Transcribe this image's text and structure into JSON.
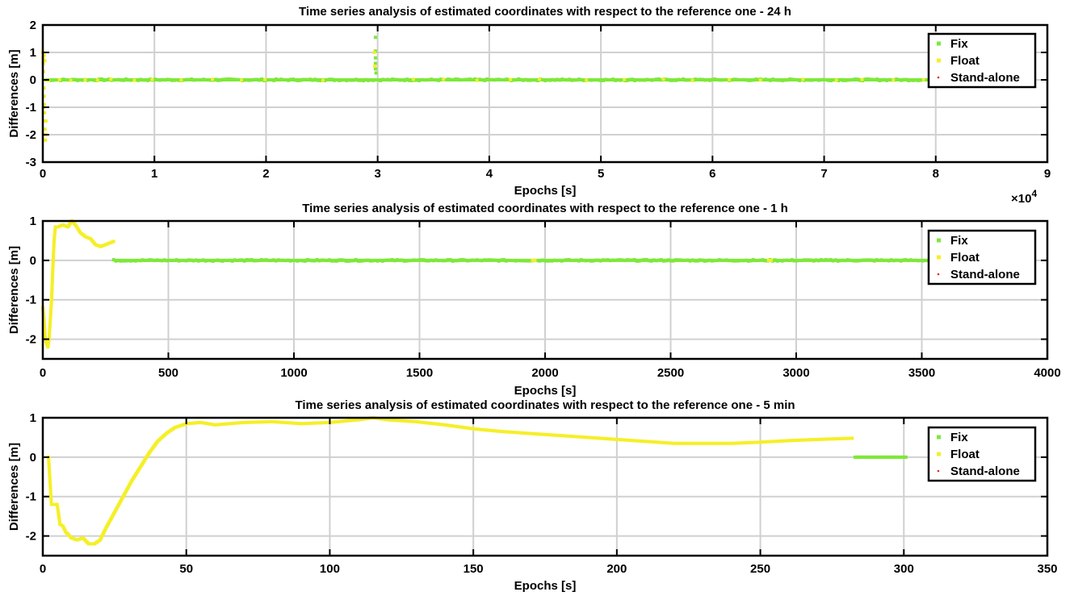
{
  "chart_data": [
    {
      "type": "scatter",
      "title": "Time series analysis of estimated coordinates with respect to the reference one - 24 h",
      "xlabel": "Epochs [s]",
      "ylabel": "Differences [m]",
      "xlim": [
        0,
        90000
      ],
      "ylim": [
        -3,
        2
      ],
      "xticks": [
        0,
        10000,
        20000,
        30000,
        40000,
        50000,
        60000,
        70000,
        80000,
        90000
      ],
      "xtick_labels": [
        "0",
        "1",
        "2",
        "3",
        "4",
        "5",
        "6",
        "7",
        "8",
        "9"
      ],
      "x_exponent_label": "×10",
      "x_exponent_power": "4",
      "yticks": [
        -3,
        -2,
        -1,
        0,
        1,
        2
      ],
      "ytick_labels": [
        "-3",
        "-2",
        "-1",
        "0",
        "1",
        "2"
      ],
      "grid": true,
      "legend_position": "top-right",
      "series": [
        {
          "name": "Fix",
          "color": "#7ee83a",
          "marker": "square",
          "segments": [
            {
              "x_start": 300,
              "x_end": 79500,
              "y": 0,
              "jitter": 0.03
            }
          ],
          "points": [
            [
              29800,
              1.55
            ],
            [
              29800,
              1.05
            ],
            [
              29800,
              0.8
            ],
            [
              29800,
              0.6
            ],
            [
              29800,
              0.4
            ],
            [
              29850,
              0.25
            ]
          ]
        },
        {
          "name": "Float",
          "color": "#f5ef28",
          "marker": "square",
          "points": [
            [
              0,
              1.0
            ],
            [
              20,
              0.8
            ],
            [
              40,
              0.6
            ],
            [
              60,
              0.3
            ],
            [
              80,
              0.0
            ],
            [
              100,
              -0.3
            ],
            [
              120,
              -0.6
            ],
            [
              140,
              -0.9
            ],
            [
              160,
              -1.2
            ],
            [
              180,
              -1.5
            ],
            [
              200,
              -1.8
            ],
            [
              220,
              -2.0
            ],
            [
              240,
              -2.2
            ],
            [
              260,
              -2.0
            ],
            [
              280,
              -1.5
            ],
            [
              120,
              0.9
            ],
            [
              180,
              0.7
            ],
            [
              60,
              -1.0
            ],
            [
              29700,
              1.0
            ],
            [
              29750,
              0.5
            ],
            [
              500,
              -0.02
            ],
            [
              1500,
              0.01
            ],
            [
              2500,
              -0.02
            ],
            [
              3800,
              0.0
            ],
            [
              4900,
              -0.01
            ],
            [
              6100,
              0.02
            ],
            [
              8200,
              -0.02
            ],
            [
              9800,
              0.01
            ],
            [
              12400,
              -0.01
            ],
            [
              15200,
              0.02
            ],
            [
              17800,
              -0.01
            ],
            [
              19900,
              0.01
            ],
            [
              25100,
              -0.02
            ],
            [
              33200,
              0.02
            ],
            [
              35900,
              0.01
            ],
            [
              38900,
              -0.02
            ],
            [
              41900,
              0.01
            ],
            [
              44500,
              0.02
            ],
            [
              48700,
              -0.01
            ],
            [
              52100,
              0.01
            ],
            [
              55600,
              0.02
            ],
            [
              58200,
              -0.02
            ],
            [
              61500,
              0.01
            ],
            [
              64300,
              -0.01
            ],
            [
              68100,
              0.02
            ],
            [
              71100,
              -0.02
            ],
            [
              73400,
              0.01
            ],
            [
              76200,
              -0.01
            ],
            [
              78900,
              0.01
            ]
          ]
        },
        {
          "name": "Stand-alone",
          "color": "#e8261f",
          "marker": "dot",
          "points": []
        }
      ]
    },
    {
      "type": "scatter",
      "title": "Time series analysis of estimated coordinates with respect to the reference one - 1 h",
      "xlabel": "Epochs [s]",
      "ylabel": "Differences [m]",
      "xlim": [
        0,
        4000
      ],
      "ylim": [
        -2.5,
        1
      ],
      "xticks": [
        0,
        500,
        1000,
        1500,
        2000,
        2500,
        3000,
        3500,
        4000
      ],
      "xtick_labels": [
        "0",
        "500",
        "1000",
        "1500",
        "2000",
        "2500",
        "3000",
        "3500",
        "4000"
      ],
      "yticks": [
        -2,
        -1,
        0,
        1
      ],
      "ytick_labels": [
        "-2",
        "-1",
        "0",
        "1"
      ],
      "grid": true,
      "legend_position": "top-right",
      "series": [
        {
          "name": "Fix",
          "color": "#7ee83a",
          "marker": "square",
          "segments": [
            {
              "x_start": 282,
              "x_end": 3560,
              "y": 0,
              "jitter": 0.02
            }
          ],
          "points": []
        },
        {
          "name": "Float",
          "color": "#f5ef28",
          "marker": "square",
          "curve": [
            [
              0,
              -1.2
            ],
            [
              5,
              -1.5
            ],
            [
              10,
              -2.0
            ],
            [
              15,
              -2.1
            ],
            [
              20,
              -2.2
            ],
            [
              25,
              -2.0
            ],
            [
              30,
              -1.5
            ],
            [
              35,
              -1.0
            ],
            [
              40,
              -0.2
            ],
            [
              45,
              0.5
            ],
            [
              50,
              0.85
            ],
            [
              60,
              0.85
            ],
            [
              80,
              0.9
            ],
            [
              100,
              0.85
            ],
            [
              115,
              1.0
            ],
            [
              130,
              0.9
            ],
            [
              150,
              0.7
            ],
            [
              170,
              0.6
            ],
            [
              190,
              0.55
            ],
            [
              210,
              0.4
            ],
            [
              230,
              0.35
            ],
            [
              250,
              0.4
            ],
            [
              270,
              0.45
            ],
            [
              282,
              0.48
            ]
          ],
          "points": [
            [
              1950,
              0.0
            ],
            [
              1960,
              0.0
            ],
            [
              2890,
              0.0
            ],
            [
              2900,
              0.0
            ]
          ]
        },
        {
          "name": "Stand-alone",
          "color": "#e8261f",
          "marker": "dot",
          "points": []
        }
      ]
    },
    {
      "type": "scatter",
      "title": "Time series analysis of estimated coordinates with respect to the reference one - 5 min",
      "xlabel": "Epochs [s]",
      "ylabel": "Differences [m]",
      "xlim": [
        0,
        350
      ],
      "ylim": [
        -2.5,
        1
      ],
      "xticks": [
        0,
        50,
        100,
        150,
        200,
        250,
        300,
        350
      ],
      "xtick_labels": [
        "0",
        "50",
        "100",
        "150",
        "200",
        "250",
        "300",
        "350"
      ],
      "yticks": [
        -2,
        -1,
        0,
        1
      ],
      "ytick_labels": [
        "-2",
        "-1",
        "0",
        "1"
      ],
      "grid": true,
      "legend_position": "top-right",
      "series": [
        {
          "name": "Fix",
          "color": "#7ee83a",
          "marker": "square",
          "segments": [
            {
              "x_start": 283,
              "x_end": 301,
              "y": 0,
              "jitter": 0.0
            }
          ],
          "points": []
        },
        {
          "name": "Float",
          "color": "#f5ef28",
          "marker": "square",
          "curve": [
            [
              2,
              0.0
            ],
            [
              3,
              -1.2
            ],
            [
              5,
              -1.2
            ],
            [
              6,
              -1.7
            ],
            [
              7,
              -1.75
            ],
            [
              8,
              -1.9
            ],
            [
              10,
              -2.05
            ],
            [
              12,
              -2.1
            ],
            [
              14,
              -2.05
            ],
            [
              16,
              -2.2
            ],
            [
              18,
              -2.2
            ],
            [
              20,
              -2.1
            ],
            [
              22,
              -1.8
            ],
            [
              25,
              -1.4
            ],
            [
              28,
              -1.0
            ],
            [
              31,
              -0.6
            ],
            [
              34,
              -0.25
            ],
            [
              37,
              0.1
            ],
            [
              40,
              0.4
            ],
            [
              43,
              0.6
            ],
            [
              46,
              0.75
            ],
            [
              50,
              0.85
            ],
            [
              55,
              0.88
            ],
            [
              60,
              0.82
            ],
            [
              70,
              0.88
            ],
            [
              80,
              0.9
            ],
            [
              90,
              0.85
            ],
            [
              100,
              0.88
            ],
            [
              110,
              0.95
            ],
            [
              115,
              1.0
            ],
            [
              120,
              0.95
            ],
            [
              130,
              0.9
            ],
            [
              140,
              0.82
            ],
            [
              150,
              0.72
            ],
            [
              160,
              0.65
            ],
            [
              170,
              0.6
            ],
            [
              180,
              0.55
            ],
            [
              190,
              0.5
            ],
            [
              200,
              0.45
            ],
            [
              210,
              0.4
            ],
            [
              220,
              0.35
            ],
            [
              230,
              0.35
            ],
            [
              240,
              0.35
            ],
            [
              250,
              0.38
            ],
            [
              260,
              0.42
            ],
            [
              270,
              0.45
            ],
            [
              282,
              0.48
            ]
          ],
          "points": []
        },
        {
          "name": "Stand-alone",
          "color": "#e8261f",
          "marker": "dot",
          "points": []
        }
      ]
    }
  ]
}
